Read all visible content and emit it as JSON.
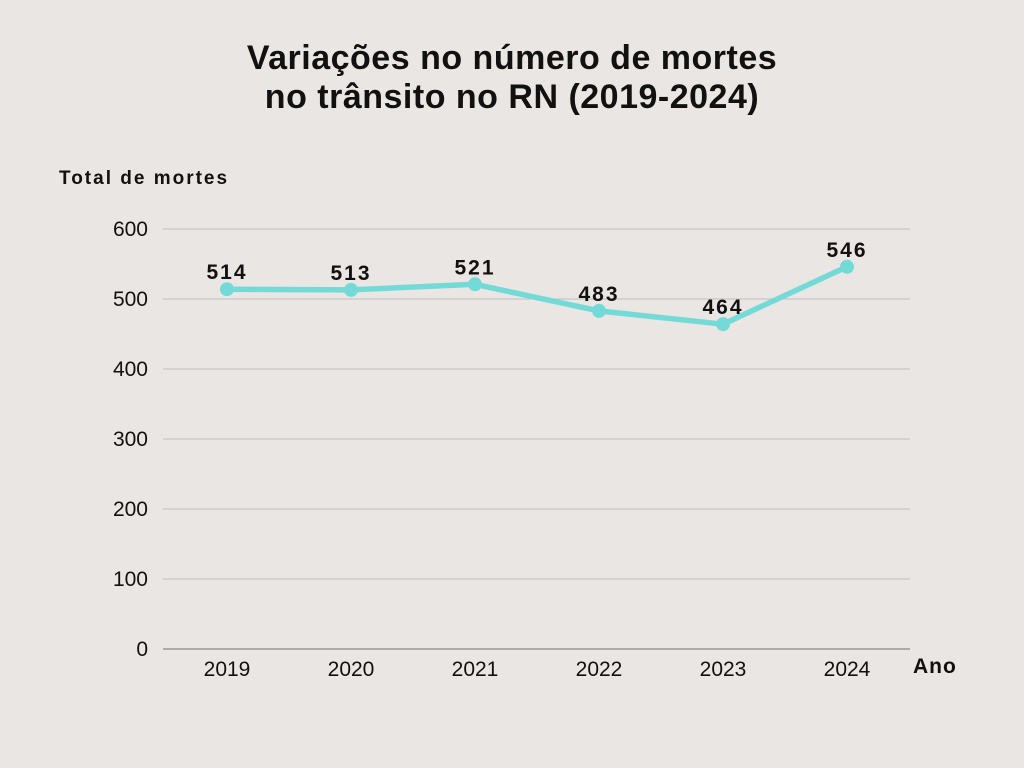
{
  "page": {
    "background_color": "#EAE6E3"
  },
  "title": {
    "line1": "Variações no número de mortes",
    "line2": "no trânsito no RN (2019-2024)"
  },
  "chart_data": {
    "type": "line",
    "title": "Variações no número de mortes no trânsito no RN (2019-2024)",
    "ylabel": "Total de mortes",
    "xlabel": "Ano",
    "categories": [
      "2019",
      "2020",
      "2021",
      "2022",
      "2023",
      "2024"
    ],
    "values": [
      514,
      513,
      521,
      483,
      464,
      546
    ],
    "data_labels": [
      "514",
      "513",
      "521",
      "483",
      "464",
      "546"
    ],
    "yticks": [
      0,
      100,
      200,
      300,
      400,
      500,
      600
    ],
    "ylim": [
      0,
      600
    ],
    "grid": true,
    "legend": "none",
    "line_color": "#74DAD8",
    "grid_color": "#CBC7C4",
    "axis_color": "#9A9794",
    "text_color": "#111111"
  }
}
